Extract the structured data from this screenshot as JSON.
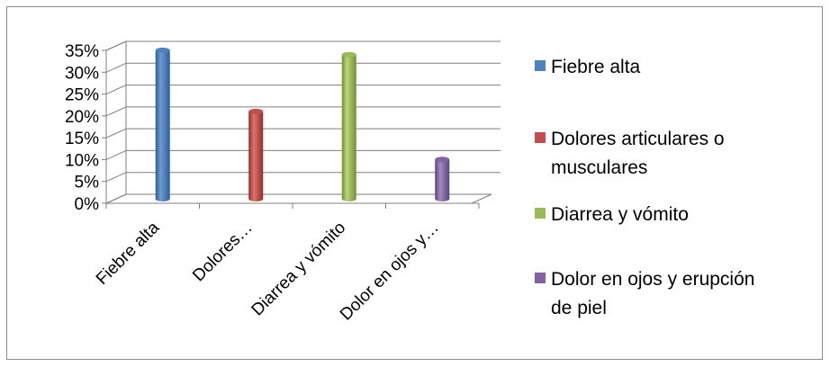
{
  "chart_data": {
    "type": "bar",
    "style": "3d-cylinder",
    "categories_full": [
      "Fiebre alta",
      "Dolores articulares o musculares",
      "Diarrea y vómito",
      "Dolor en ojos y erupción de piel"
    ],
    "category_axis_labels": [
      "Fiebre alta",
      "Dolores…",
      "Diarrea y vómito",
      "Dolor en ojos y…"
    ],
    "values": [
      34,
      20,
      33,
      9
    ],
    "unit": "%",
    "ylim": [
      0,
      35
    ],
    "y_ticks": [
      "0%",
      "5%",
      "10%",
      "15%",
      "20%",
      "25%",
      "30%",
      "35%"
    ],
    "grid": true,
    "legend_position": "right",
    "legend_entries": [
      {
        "label_lines": [
          "Fiebre alta"
        ]
      },
      {
        "label_lines": [
          "Dolores articulares o",
          "musculares"
        ]
      },
      {
        "label_lines": [
          "Diarrea y vómito"
        ]
      },
      {
        "label_lines": [
          "Dolor en ojos y erupción",
          "de piel"
        ]
      }
    ],
    "colors": [
      "#4f81bd",
      "#c0504d",
      "#9bbb59",
      "#8064a2"
    ],
    "title": "",
    "xlabel": "",
    "ylabel": ""
  }
}
